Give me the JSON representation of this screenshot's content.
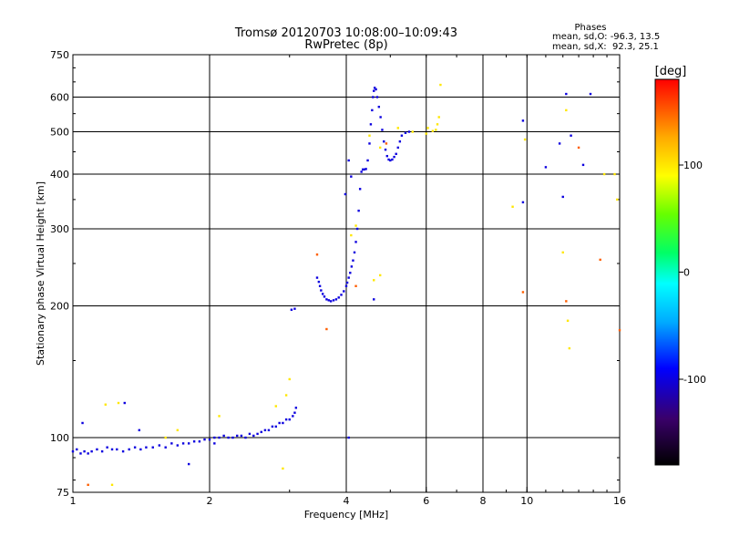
{
  "chart_data": {
    "type": "scatter",
    "title": "Tromsø 20120703 10:08:00–10:09:43",
    "subtitle": "RwPretec (8p)",
    "stats": {
      "header": "Phases",
      "line1": "mean, sd,O: -96.3, 13.5",
      "line2": "mean, sd,X:  92.3, 25.1"
    },
    "xlabel": "Frequency [MHz]",
    "ylabel": "Stationary phase Virtual Height [km]",
    "x_scale": "log",
    "y_scale": "log",
    "xlim": [
      1,
      16
    ],
    "ylim": [
      75,
      750
    ],
    "x_ticks": [
      1,
      2,
      4,
      6,
      8,
      10,
      16
    ],
    "y_ticks": [
      75,
      100,
      200,
      300,
      400,
      500,
      600,
      750
    ],
    "x_gridlines": [
      2,
      4,
      6,
      8,
      10
    ],
    "y_gridlines": [
      100,
      200,
      300,
      400,
      500,
      600
    ],
    "colorbar": {
      "label": "[deg]",
      "min": -180,
      "max": 180,
      "ticks": [
        100,
        0,
        -100
      ]
    },
    "series": [
      {
        "role": "o-trace",
        "phase": -100,
        "points": [
          [
            1.0,
            93
          ],
          [
            1.02,
            94
          ],
          [
            1.04,
            92
          ],
          [
            1.06,
            93
          ],
          [
            1.08,
            92
          ],
          [
            1.1,
            93
          ],
          [
            1.13,
            94
          ],
          [
            1.16,
            93
          ],
          [
            1.19,
            95
          ],
          [
            1.22,
            94
          ],
          [
            1.25,
            94
          ],
          [
            1.29,
            93
          ],
          [
            1.33,
            94
          ],
          [
            1.37,
            95
          ],
          [
            1.41,
            94
          ],
          [
            1.45,
            95
          ],
          [
            1.5,
            95
          ],
          [
            1.55,
            96
          ],
          [
            1.6,
            95
          ],
          [
            1.65,
            97
          ],
          [
            1.7,
            96
          ],
          [
            1.75,
            97
          ],
          [
            1.8,
            97
          ],
          [
            1.85,
            98
          ],
          [
            1.9,
            98
          ],
          [
            1.95,
            99
          ],
          [
            2.0,
            99
          ],
          [
            2.05,
            100
          ],
          [
            2.1,
            100
          ],
          [
            2.15,
            101
          ],
          [
            2.2,
            100
          ],
          [
            2.25,
            100
          ],
          [
            2.3,
            101
          ],
          [
            2.35,
            101
          ],
          [
            2.4,
            100
          ],
          [
            2.45,
            102
          ],
          [
            2.5,
            101
          ],
          [
            2.55,
            102
          ],
          [
            2.6,
            103
          ],
          [
            2.65,
            104
          ],
          [
            2.7,
            104
          ],
          [
            2.75,
            106
          ],
          [
            2.8,
            106
          ],
          [
            2.85,
            108
          ],
          [
            2.9,
            108
          ],
          [
            2.95,
            110
          ],
          [
            3.0,
            110
          ],
          [
            3.05,
            112
          ],
          [
            3.08,
            114
          ],
          [
            3.1,
            117
          ],
          [
            3.03,
            196
          ],
          [
            3.08,
            197
          ],
          [
            3.45,
            232
          ],
          [
            3.48,
            227
          ],
          [
            3.5,
            222
          ],
          [
            3.52,
            217
          ],
          [
            3.55,
            213
          ],
          [
            3.58,
            210
          ],
          [
            3.62,
            207
          ],
          [
            3.66,
            206
          ],
          [
            3.7,
            205
          ],
          [
            3.75,
            206
          ],
          [
            3.8,
            207
          ],
          [
            3.85,
            209
          ],
          [
            3.9,
            212
          ],
          [
            3.95,
            216
          ],
          [
            4.0,
            222
          ],
          [
            4.02,
            226
          ],
          [
            4.05,
            232
          ],
          [
            4.08,
            238
          ],
          [
            4.11,
            246
          ],
          [
            4.14,
            254
          ],
          [
            4.17,
            265
          ],
          [
            4.2,
            280
          ],
          [
            4.23,
            300
          ],
          [
            4.26,
            330
          ],
          [
            4.29,
            370
          ],
          [
            4.32,
            405
          ],
          [
            4.35,
            410
          ],
          [
            4.38,
            410
          ],
          [
            4.42,
            411
          ],
          [
            4.46,
            430
          ],
          [
            4.5,
            470
          ],
          [
            4.53,
            520
          ],
          [
            4.56,
            560
          ],
          [
            4.58,
            600
          ],
          [
            4.6,
            620
          ],
          [
            4.62,
            630
          ],
          [
            4.65,
            625
          ],
          [
            4.68,
            600
          ],
          [
            4.72,
            570
          ],
          [
            4.76,
            540
          ],
          [
            4.8,
            505
          ],
          [
            4.84,
            475
          ],
          [
            4.88,
            455
          ],
          [
            4.92,
            440
          ],
          [
            4.96,
            432
          ],
          [
            5.0,
            430
          ],
          [
            5.05,
            432
          ],
          [
            5.1,
            438
          ],
          [
            5.15,
            445
          ],
          [
            5.2,
            460
          ],
          [
            5.25,
            475
          ],
          [
            5.3,
            490
          ],
          [
            5.4,
            497
          ],
          [
            5.5,
            500
          ],
          [
            4.05,
            430
          ],
          [
            4.1,
            395
          ],
          [
            3.98,
            360
          ],
          [
            9.8,
            530
          ],
          [
            11.0,
            415
          ],
          [
            12.2,
            610
          ],
          [
            12.5,
            490
          ],
          [
            12.0,
            355
          ],
          [
            11.8,
            470
          ],
          [
            13.3,
            420
          ],
          [
            13.8,
            610
          ],
          [
            9.8,
            345
          ],
          [
            4.6,
            207
          ],
          [
            1.05,
            108
          ],
          [
            1.3,
            120
          ],
          [
            1.4,
            104
          ],
          [
            1.8,
            87
          ],
          [
            4.05,
            100
          ],
          [
            2.05,
            97
          ]
        ]
      },
      {
        "role": "x-trace",
        "phase": 100,
        "points": [
          [
            1.18,
            119
          ],
          [
            1.26,
            120
          ],
          [
            1.7,
            104
          ],
          [
            2.1,
            112
          ],
          [
            2.8,
            118
          ],
          [
            2.95,
            125
          ],
          [
            3.0,
            136
          ],
          [
            2.9,
            85
          ],
          [
            1.6,
            100
          ],
          [
            4.6,
            229
          ],
          [
            4.75,
            235
          ],
          [
            5.2,
            510
          ],
          [
            5.6,
            500
          ],
          [
            6.0,
            495
          ],
          [
            6.2,
            502
          ],
          [
            6.3,
            505
          ],
          [
            6.35,
            520
          ],
          [
            6.4,
            540
          ],
          [
            6.45,
            640
          ],
          [
            6.05,
            510
          ],
          [
            4.75,
            460
          ],
          [
            4.5,
            490
          ],
          [
            9.3,
            337
          ],
          [
            9.9,
            480
          ],
          [
            12.2,
            560
          ],
          [
            12.3,
            185
          ],
          [
            12.4,
            160
          ],
          [
            12.0,
            265
          ],
          [
            14.8,
            400
          ],
          [
            15.6,
            400
          ],
          [
            15.8,
            350
          ],
          [
            4.1,
            290
          ],
          [
            4.2,
            305
          ],
          [
            1.22,
            78
          ]
        ]
      },
      {
        "role": "other",
        "phase": 150,
        "points": [
          [
            3.45,
            262
          ],
          [
            3.62,
            177
          ],
          [
            4.2,
            222
          ],
          [
            12.2,
            205
          ],
          [
            13.0,
            460
          ],
          [
            14.5,
            255
          ],
          [
            16.0,
            176
          ],
          [
            1.08,
            78
          ],
          [
            4.9,
            470
          ],
          [
            9.8,
            215
          ]
        ]
      }
    ]
  }
}
